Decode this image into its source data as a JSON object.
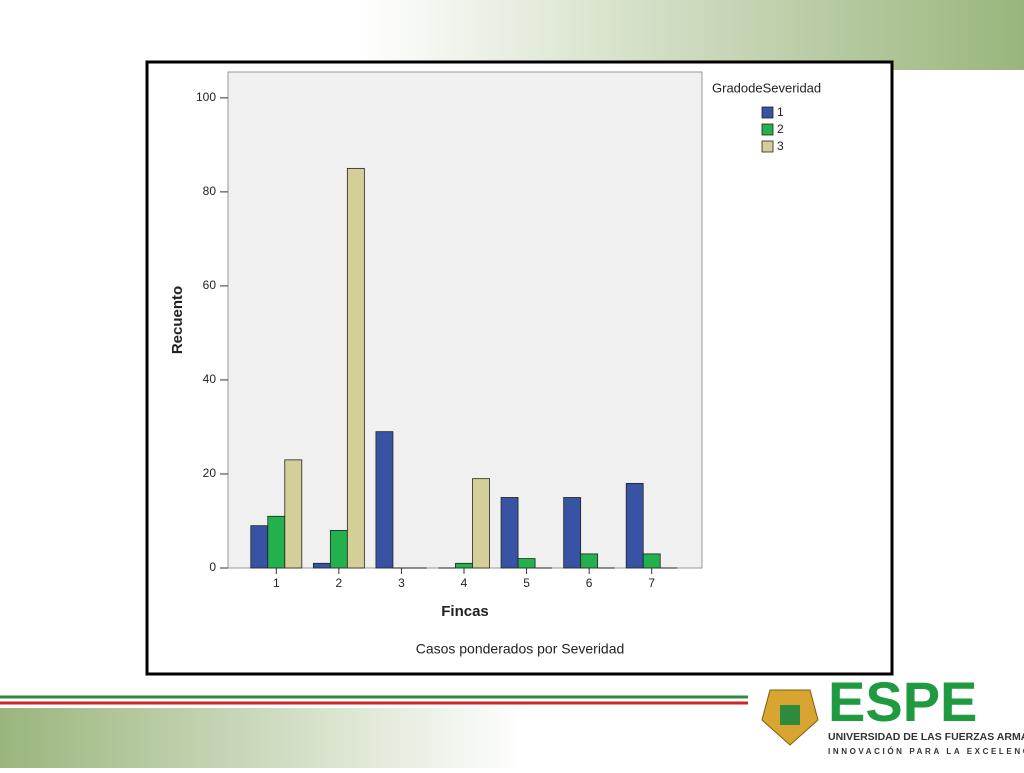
{
  "chart_data": {
    "type": "bar",
    "categories": [
      "1",
      "2",
      "3",
      "4",
      "5",
      "6",
      "7"
    ],
    "series": [
      {
        "name": "1",
        "color": "#3953a4",
        "values": [
          9,
          1,
          29,
          0,
          15,
          15,
          18
        ]
      },
      {
        "name": "2",
        "color": "#22b14c",
        "values": [
          11,
          8,
          0,
          1,
          2,
          3,
          3
        ]
      },
      {
        "name": "3",
        "color": "#d4cf98",
        "values": [
          23,
          85,
          0,
          19,
          0,
          0,
          0
        ]
      }
    ],
    "ylim": [
      0,
      105.5
    ],
    "yticks": [
      0,
      20,
      40,
      60,
      80,
      100
    ],
    "x_label": "Fincas",
    "y_label": "Recuento",
    "legend_title": "GradodeSeveridad",
    "legend": "right",
    "footnote": "Casos ponderados por Severidad"
  },
  "logo": {
    "name": "ESPE",
    "university": "UNIVERSIDAD DE LAS FUERZAS ARMADAS",
    "motto": "INNOVACIÓN PARA LA EXCELENCIA"
  }
}
